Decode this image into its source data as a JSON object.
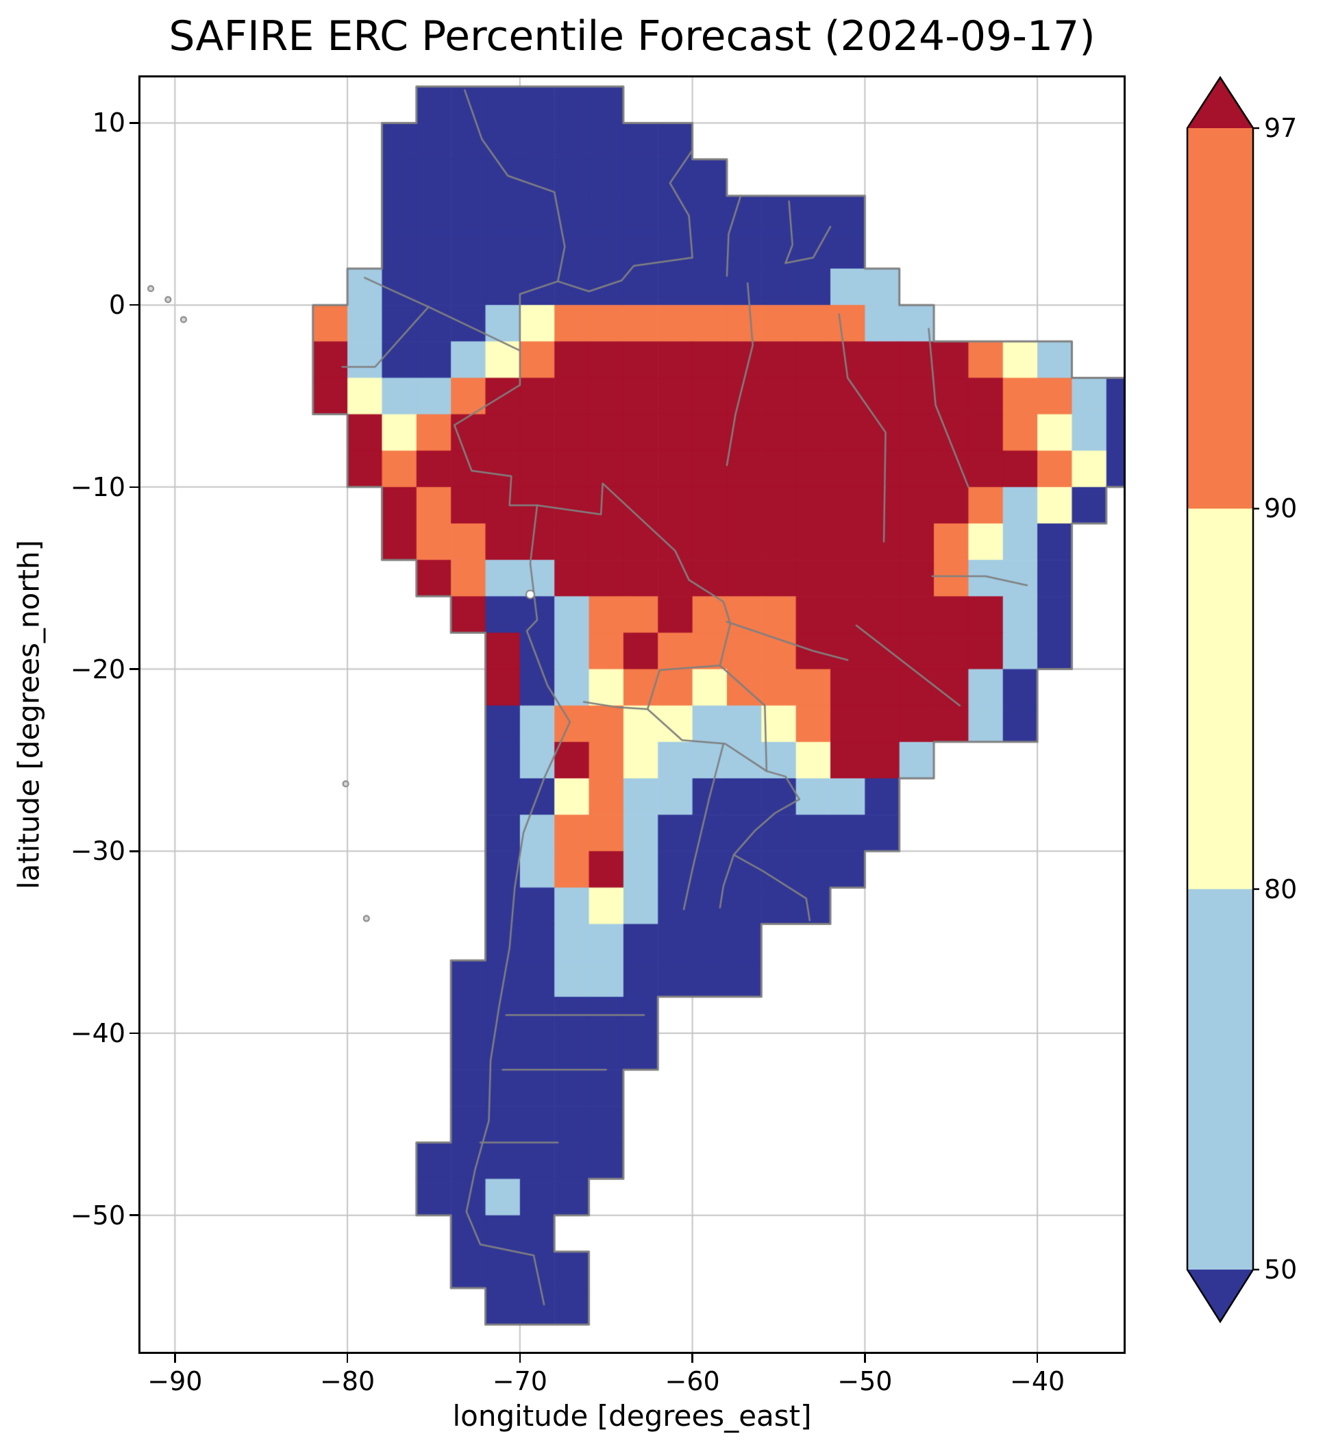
{
  "chart_data": {
    "type": "heatmap",
    "title": "SAFIRE ERC Percentile Forecast (2024-09-17)",
    "date_shown": "2024-09-17",
    "xlabel": "longitude [degrees_east]",
    "ylabel": "latitude [degrees_north]",
    "xlim": [
      -92,
      -35
    ],
    "ylim": [
      12.5,
      -57.5
    ],
    "xticks": [
      -90,
      -80,
      -70,
      -60,
      -50,
      -40
    ],
    "xtick_labels": [
      "−90",
      "−80",
      "−70",
      "−60",
      "−50",
      "−40"
    ],
    "yticks": [
      10,
      0,
      -10,
      -20,
      -30,
      -40,
      -50
    ],
    "ytick_labels": [
      "10",
      "0",
      "−10",
      "−20",
      "−30",
      "−40",
      "−50"
    ],
    "grid": true,
    "grid_color": "#c4c4c4",
    "coast_color": "#808080",
    "palette": {
      "1": "#313695",
      "2": "#a3cce3",
      "3": "#ffffbf",
      "4": "#f57b4a",
      "5": "#a6112b"
    },
    "categories": {
      "1": "< 50",
      "2": "50–80",
      "3": "80–90",
      "4": "90–97",
      "5": "> 97"
    },
    "colorbar": {
      "labels": [
        "97",
        "90",
        "80",
        "50"
      ],
      "values": [
        97,
        90,
        80,
        50
      ],
      "segment_colors_top_to_bottom": [
        "#f57b4a",
        "#ffffbf",
        "#a3cce3"
      ],
      "over_color": "#a6112b",
      "under_color": "#313695",
      "extend": "both"
    },
    "grid_def": {
      "lon0": -92,
      "lat0": 12,
      "cell_deg": 2,
      "ncols": 29,
      "nrows": 35
    },
    "cells": [
      "........111111...............",
      ".......111111111.............",
      ".......1111111111............",
      ".......11111111111111........",
      ".......11111111111111........",
      "......2111111111111122.......",
      ".....421112344444444422......",
      ".....5211234555555555555432..",
      ".....532245555555555555554421",
      "......53455555555555555554321",
      "......54555555555555555555431",
      ".......545555555555555554231.",
      ".......54455555555555554321..",
      "........5422555555555554221..",
      ".........511244544455555521..",
      "..........51245444455555521..",
      "..........5123443444555521...",
      "..........1244332234555521...",
      "..........1254322223552......",
      "..........113422111221.......",
      "..........124421111111.......",
      "..........12452111111........",
      "..........1123211111.........",
      "..........11221111...........",
      ".........111221111...........",
      ".........111111..............",
      ".........111111..............",
      ".........11111...............",
      ".........11111...............",
      "........111111...............",
      "........11211................",
      ".........111.................",
      ".........1111................",
      "..........111................",
      "............................."
    ],
    "borders": [
      [
        [
          -73.2,
          11.8
        ],
        [
          -72.2,
          9.1
        ],
        [
          -70.7,
          7.1
        ],
        [
          -68.0,
          6.2
        ],
        [
          -67.4,
          3.2
        ],
        [
          -67.8,
          1.3
        ],
        [
          -70.0,
          0.6
        ],
        [
          -70.0,
          -2.5
        ]
      ],
      [
        [
          -60.0,
          8.5
        ],
        [
          -61.3,
          6.7
        ],
        [
          -60.2,
          4.9
        ],
        [
          -60.0,
          2.6
        ],
        [
          -63.4,
          2.15
        ],
        [
          -64.1,
          1.35
        ],
        [
          -66.0,
          0.75
        ],
        [
          -67.8,
          1.3
        ]
      ],
      [
        [
          -57.2,
          6.0
        ],
        [
          -57.9,
          3.9
        ],
        [
          -58.0,
          1.6
        ]
      ],
      [
        [
          -54.4,
          5.7
        ],
        [
          -54.2,
          3.3
        ],
        [
          -54.6,
          2.3
        ]
      ],
      [
        [
          -52.0,
          4.3
        ],
        [
          -53.0,
          2.6
        ],
        [
          -54.6,
          2.3
        ]
      ],
      [
        [
          -79.0,
          1.5
        ],
        [
          -77.4,
          0.8
        ],
        [
          -75.3,
          -0.1
        ],
        [
          -70.0,
          -2.5
        ],
        [
          -70.0,
          -4.4
        ]
      ],
      [
        [
          -80.3,
          -3.4
        ],
        [
          -78.4,
          -3.4
        ],
        [
          -75.3,
          -0.1
        ]
      ],
      [
        [
          -70.0,
          -4.4
        ],
        [
          -73.8,
          -6.6
        ],
        [
          -72.8,
          -9.1
        ],
        [
          -70.5,
          -9.4
        ],
        [
          -70.6,
          -11.0
        ],
        [
          -69.0,
          -11.0
        ]
      ],
      [
        [
          -69.0,
          -11.0
        ],
        [
          -69.4,
          -14.2
        ],
        [
          -69.0,
          -17.3
        ],
        [
          -69.6,
          -17.9
        ],
        [
          -68.4,
          -20.9
        ],
        [
          -67.1,
          -22.9
        ]
      ],
      [
        [
          -69.0,
          -11.0
        ],
        [
          -65.3,
          -11.5
        ],
        [
          -65.2,
          -9.8
        ],
        [
          -61.0,
          -13.5
        ],
        [
          -60.2,
          -15.1
        ],
        [
          -58.2,
          -16.3
        ],
        [
          -57.8,
          -17.5
        ],
        [
          -58.4,
          -19.8
        ]
      ],
      [
        [
          -58.4,
          -19.8
        ],
        [
          -61.9,
          -20.05
        ],
        [
          -62.6,
          -22.2
        ]
      ],
      [
        [
          -66.3,
          -21.8
        ],
        [
          -64.3,
          -22.1
        ],
        [
          -62.6,
          -22.2
        ],
        [
          -60.6,
          -23.9
        ],
        [
          -58.1,
          -24.1
        ],
        [
          -55.7,
          -25.6
        ]
      ],
      [
        [
          -58.4,
          -19.8
        ],
        [
          -55.8,
          -22.0
        ],
        [
          -55.7,
          -25.6
        ],
        [
          -54.6,
          -25.9
        ],
        [
          -53.8,
          -27.15
        ]
      ],
      [
        [
          -53.8,
          -27.15
        ],
        [
          -55.2,
          -27.9
        ],
        [
          -56.4,
          -28.9
        ],
        [
          -57.6,
          -30.2
        ],
        [
          -58.2,
          -31.9
        ],
        [
          -58.4,
          -33.1
        ]
      ],
      [
        [
          -57.6,
          -30.2
        ],
        [
          -55.9,
          -31.1
        ],
        [
          -53.4,
          -32.6
        ],
        [
          -53.2,
          -33.8
        ]
      ],
      [
        [
          -67.1,
          -22.9
        ],
        [
          -68.6,
          -26.0
        ],
        [
          -69.8,
          -29.0
        ],
        [
          -70.3,
          -32.0
        ],
        [
          -70.6,
          -35.3
        ],
        [
          -71.2,
          -38.5
        ],
        [
          -71.7,
          -41.5
        ],
        [
          -71.8,
          -44.8
        ],
        [
          -72.6,
          -47.5
        ],
        [
          -73.1,
          -49.8
        ],
        [
          -72.3,
          -51.6
        ],
        [
          -69.2,
          -52.2
        ],
        [
          -68.6,
          -54.9
        ]
      ],
      [
        [
          -56.8,
          1.2
        ],
        [
          -56.5,
          -2.2
        ],
        [
          -57.5,
          -6.0
        ],
        [
          -58.0,
          -8.8
        ]
      ],
      [
        [
          -51.5,
          -0.5
        ],
        [
          -51.0,
          -4.0
        ],
        [
          -48.8,
          -7.0
        ],
        [
          -48.9,
          -13.0
        ]
      ],
      [
        [
          -46.3,
          -1.3
        ],
        [
          -45.9,
          -5.5
        ],
        [
          -44.0,
          -10.0
        ]
      ],
      [
        [
          -50.5,
          -17.6
        ],
        [
          -47.5,
          -19.8
        ],
        [
          -44.5,
          -22.0
        ]
      ],
      [
        [
          -46.1,
          -14.9
        ],
        [
          -43.0,
          -14.9
        ],
        [
          -40.6,
          -15.4
        ]
      ],
      [
        [
          -58.0,
          -17.4
        ],
        [
          -53.0,
          -19.0
        ],
        [
          -51.0,
          -19.5
        ]
      ],
      [
        [
          -58.2,
          -24.1
        ],
        [
          -59.0,
          -27.0
        ],
        [
          -60.0,
          -31.0
        ],
        [
          -60.5,
          -33.2
        ]
      ],
      [
        [
          -70.8,
          -39.0
        ],
        [
          -62.8,
          -39.0
        ]
      ],
      [
        [
          -71.0,
          -42.0
        ],
        [
          -65.0,
          -42.0
        ]
      ],
      [
        [
          -72.3,
          -46.0
        ],
        [
          -67.8,
          -46.0
        ]
      ]
    ],
    "islands": [
      [
        -91.4,
        0.9
      ],
      [
        -90.4,
        0.3
      ],
      [
        -89.5,
        -0.8
      ],
      [
        -80.1,
        -26.3
      ],
      [
        -78.9,
        -33.7
      ]
    ],
    "lakes": [
      [
        -69.4,
        -15.9
      ]
    ]
  }
}
